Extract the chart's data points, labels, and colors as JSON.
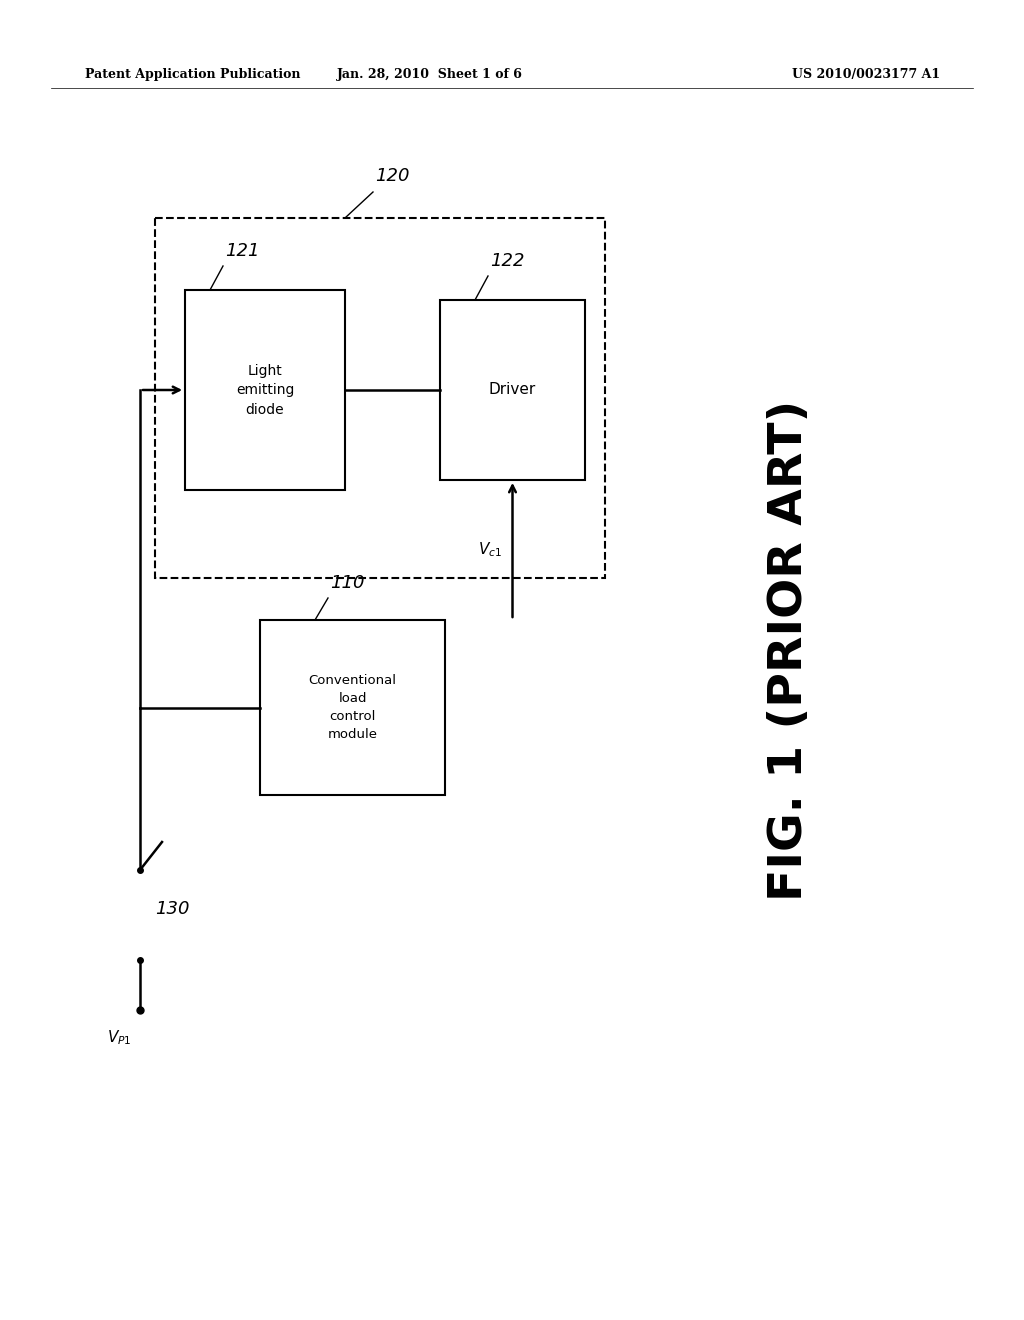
{
  "bg_color": "#ffffff",
  "header_left": "Patent Application Publication",
  "header_center": "Jan. 28, 2010  Sheet 1 of 6",
  "header_right": "US 2010/0023177 A1",
  "fig_label": "FIG. 1 (PRIOR ART)",
  "label_120": "120",
  "label_121": "121",
  "label_122": "122",
  "label_110": "110",
  "label_130": "130",
  "box_led_text": "Light\nemitting\ndiode",
  "box_driver_text": "Driver",
  "box_conv_text": "Conventional\nload\ncontrol\nmodule"
}
